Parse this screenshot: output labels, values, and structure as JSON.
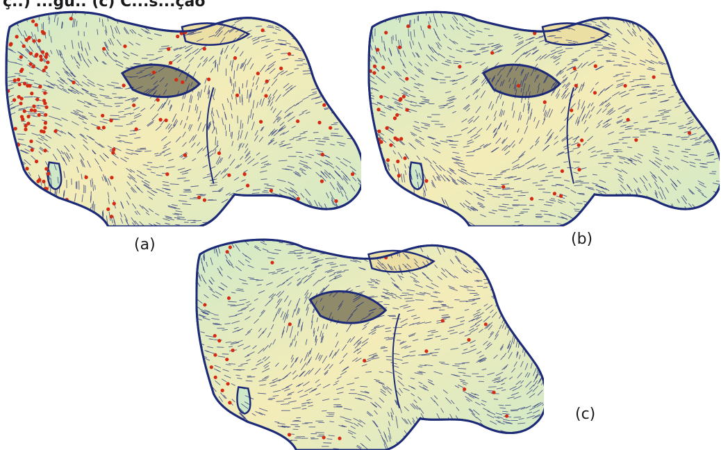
{
  "top_caption_fragment": "ç..) ...gu.. (c) C...s...ção",
  "panels": [
    {
      "label": "(a)",
      "singularity_count": "many"
    },
    {
      "label": "(b)",
      "singularity_count": "fewer"
    },
    {
      "label": "(c)",
      "singularity_count": "fewest"
    }
  ],
  "colors": {
    "surface_warm": "#f4ecb8",
    "surface_cool": "#cfe9c8",
    "streamline": "#1c2a78",
    "singularity": "#d42a14"
  }
}
